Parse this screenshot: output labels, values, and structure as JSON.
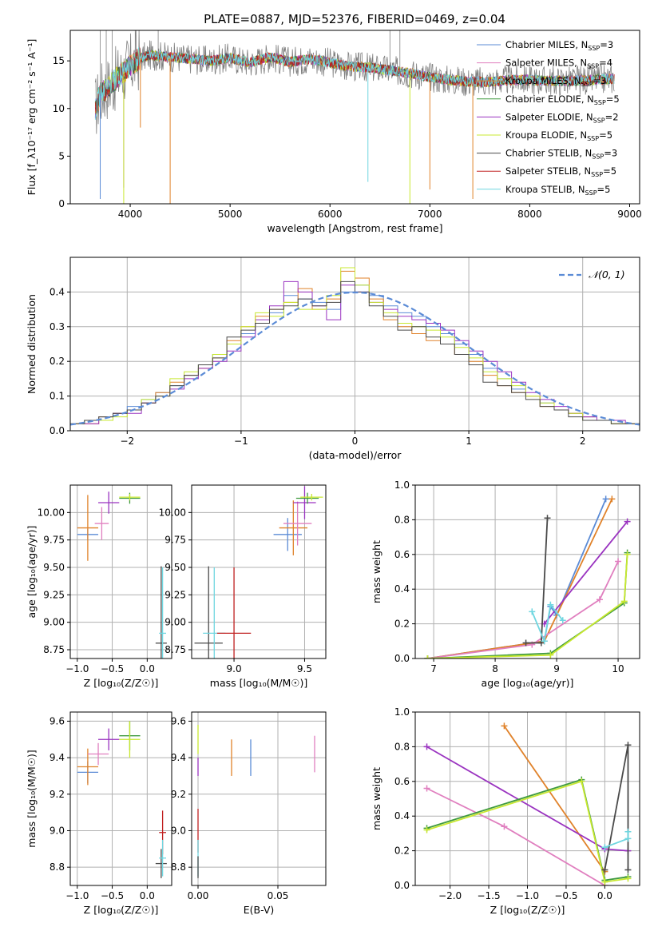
{
  "title": "PLATE=0887, MJD=52376, FIBERID=0469, z=0.04",
  "colors": {
    "chabrier_miles": "#5b8bd6",
    "salpeter_miles": "#e07fbf",
    "kroupa_miles": "#e0822a",
    "chabrier_elodie": "#3f9a3f",
    "salpeter_elodie": "#9a33c0",
    "kroupa_elodie": "#c8e830",
    "chabrier_stelib": "#4a4a4a",
    "salpeter_stelib": "#c02020",
    "kroupa_stelib": "#6fd6e0",
    "gaussian": "#5b8bd6",
    "grid": "#b0b0b0"
  },
  "legend_spectrum": [
    {
      "label": "Chabrier MILES, N",
      "sub": "SSP",
      "tail": "=3",
      "color": "#5b8bd6"
    },
    {
      "label": "Salpeter MILES, N",
      "sub": "SSP",
      "tail": "=4",
      "color": "#e07fbf"
    },
    {
      "label": "Kroupa MILES, N",
      "sub": "SSP",
      "tail": "=3",
      "color": "#e0822a"
    },
    {
      "label": "Chabrier ELODIE, N",
      "sub": "SSP",
      "tail": "=5",
      "color": "#3f9a3f"
    },
    {
      "label": "Salpeter ELODIE, N",
      "sub": "SSP",
      "tail": "=2",
      "color": "#9a33c0"
    },
    {
      "label": "Kroupa ELODIE, N",
      "sub": "SSP",
      "tail": "=5",
      "color": "#c8e830"
    },
    {
      "label": "Chabrier STELIB, N",
      "sub": "SSP",
      "tail": "=3",
      "color": "#4a4a4a"
    },
    {
      "label": "Salpeter STELIB, N",
      "sub": "SSP",
      "tail": "=5",
      "color": "#c02020"
    },
    {
      "label": "Kroupa STELIB, N",
      "sub": "SSP",
      "tail": "=5",
      "color": "#6fd6e0"
    }
  ],
  "legend_gauss": "𝒩(0, 1)",
  "chart_data": [
    {
      "id": "spectrum",
      "type": "line",
      "xlabel": "wavelength [Angstrom, rest frame]",
      "ylabel": "Flux [f_λ10⁻¹⁷ erg cm⁻² s⁻¹ A⁻¹]",
      "xlim": [
        3400,
        9100
      ],
      "ylim": [
        0,
        18.2
      ],
      "xticks": [
        4000,
        5000,
        6000,
        7000,
        8000,
        9000
      ],
      "yticks": [
        0,
        5,
        10,
        15
      ],
      "x": [
        3650,
        3700,
        3800,
        3900,
        4000,
        4100,
        4200,
        4400,
        4600,
        4800,
        5000,
        5200,
        5400,
        5600,
        5800,
        6000,
        6200,
        6400,
        6600,
        6800,
        7000,
        7200,
        7400,
        7600,
        7800,
        8000,
        8200,
        8400,
        8600,
        8800
      ],
      "y": [
        10.0,
        11.5,
        12.5,
        13.5,
        14.5,
        15.3,
        15.6,
        15.4,
        15.2,
        15.0,
        15.3,
        14.8,
        15.4,
        14.9,
        15.2,
        14.8,
        14.4,
        14.3,
        14.0,
        13.7,
        13.3,
        13.0,
        12.8,
        12.8,
        13.0,
        13.0,
        12.9,
        12.9,
        13.0,
        13.1
      ],
      "dips": [
        {
          "x": 3700,
          "y": 0.5,
          "color": "#5b8bd6"
        },
        {
          "x": 3935,
          "y": 1.7,
          "color": "#9a33c0"
        },
        {
          "x": 3935,
          "y": 0.0,
          "color": "#c8e830"
        },
        {
          "x": 4102,
          "y": 8.0,
          "color": "#e0822a"
        },
        {
          "x": 4400,
          "y": 0.0,
          "color": "#e0822a"
        },
        {
          "x": 6380,
          "y": 2.3,
          "color": "#6fd6e0"
        },
        {
          "x": 6800,
          "y": 0.0,
          "color": "#c8e830"
        },
        {
          "x": 7000,
          "y": 1.5,
          "color": "#e0822a"
        },
        {
          "x": 7430,
          "y": 0.5,
          "color": "#e0822a"
        }
      ]
    },
    {
      "id": "residuals",
      "type": "line",
      "xlabel": "(data-model)/error",
      "ylabel": "Normed distribution",
      "xlim": [
        -2.5,
        2.5
      ],
      "ylim": [
        0,
        0.5
      ],
      "xticks": [
        -2,
        -1,
        0,
        1,
        2
      ],
      "yticks": [
        0.0,
        0.1,
        0.2,
        0.3,
        0.4
      ],
      "gaussian": {
        "mu": 0,
        "sigma": 1,
        "name": "𝒩(0, 1)"
      },
      "series": [
        {
          "color": "#5b8bd6",
          "values": [
            0.02,
            0.03,
            0.04,
            0.05,
            0.07,
            0.09,
            0.11,
            0.13,
            0.16,
            0.19,
            0.22,
            0.25,
            0.28,
            0.31,
            0.34,
            0.39,
            0.38,
            0.37,
            0.35,
            0.4,
            0.42,
            0.39,
            0.36,
            0.34,
            0.33,
            0.3,
            0.28,
            0.25,
            0.22,
            0.18,
            0.15,
            0.12,
            0.1,
            0.08,
            0.06,
            0.05,
            0.04,
            0.03,
            0.02,
            0.02
          ]
        },
        {
          "color": "#e0822a",
          "values": [
            0.02,
            0.02,
            0.04,
            0.05,
            0.06,
            0.08,
            0.11,
            0.14,
            0.16,
            0.18,
            0.21,
            0.26,
            0.3,
            0.33,
            0.35,
            0.37,
            0.41,
            0.35,
            0.38,
            0.46,
            0.44,
            0.38,
            0.32,
            0.3,
            0.28,
            0.26,
            0.25,
            0.22,
            0.2,
            0.16,
            0.13,
            0.11,
            0.1,
            0.07,
            0.06,
            0.05,
            0.04,
            0.03,
            0.02,
            0.02
          ]
        },
        {
          "color": "#9a33c0",
          "values": [
            0.02,
            0.02,
            0.03,
            0.05,
            0.05,
            0.08,
            0.1,
            0.12,
            0.15,
            0.18,
            0.2,
            0.23,
            0.27,
            0.32,
            0.36,
            0.43,
            0.4,
            0.36,
            0.32,
            0.42,
            0.4,
            0.37,
            0.35,
            0.33,
            0.32,
            0.31,
            0.29,
            0.26,
            0.23,
            0.2,
            0.17,
            0.14,
            0.11,
            0.09,
            0.07,
            0.05,
            0.04,
            0.03,
            0.03,
            0.02
          ]
        },
        {
          "color": "#c8e830",
          "values": [
            0.02,
            0.03,
            0.03,
            0.04,
            0.06,
            0.09,
            0.1,
            0.15,
            0.17,
            0.19,
            0.22,
            0.25,
            0.3,
            0.34,
            0.33,
            0.37,
            0.35,
            0.35,
            0.39,
            0.47,
            0.42,
            0.37,
            0.34,
            0.31,
            0.3,
            0.29,
            0.27,
            0.24,
            0.21,
            0.17,
            0.15,
            0.13,
            0.1,
            0.08,
            0.06,
            0.05,
            0.03,
            0.03,
            0.02,
            0.02
          ]
        },
        {
          "color": "#4a4a4a",
          "values": [
            0.02,
            0.03,
            0.04,
            0.05,
            0.06,
            0.08,
            0.1,
            0.13,
            0.16,
            0.19,
            0.21,
            0.27,
            0.29,
            0.31,
            0.35,
            0.36,
            0.38,
            0.36,
            0.37,
            0.43,
            0.4,
            0.36,
            0.33,
            0.29,
            0.3,
            0.27,
            0.25,
            0.22,
            0.19,
            0.14,
            0.13,
            0.11,
            0.09,
            0.07,
            0.06,
            0.04,
            0.03,
            0.03,
            0.02,
            0.02
          ]
        }
      ]
    },
    {
      "id": "age-vs-Z",
      "type": "scatter",
      "xlabel": "Z [log₁₀(Z/Z☉)]",
      "ylabel": "age  [log₁₀(age/yr)]",
      "xlim": [
        -1.1,
        0.35
      ],
      "ylim": [
        8.67,
        10.25
      ],
      "xticks": [
        -1.0,
        -0.5,
        0.0
      ],
      "yticks": [
        8.75,
        9.0,
        9.25,
        9.5,
        9.75,
        10.0
      ],
      "points": [
        {
          "x": -0.85,
          "y": 9.8,
          "xerr": 0.15,
          "yerr": 0.05,
          "color": "#5b8bd6"
        },
        {
          "x": -0.85,
          "y": 9.86,
          "xerr": 0.15,
          "yerr": 0.3,
          "color": "#e0822a"
        },
        {
          "x": -0.65,
          "y": 9.9,
          "xerr": 0.1,
          "yerr": 0.15,
          "color": "#e07fbf"
        },
        {
          "x": -0.55,
          "y": 10.09,
          "xerr": 0.15,
          "yerr": 0.1,
          "color": "#9a33c0"
        },
        {
          "x": -0.25,
          "y": 10.13,
          "xerr": 0.15,
          "yerr": 0.05,
          "color": "#3f9a3f"
        },
        {
          "x": -0.25,
          "y": 10.14,
          "xerr": 0.15,
          "yerr": 0.03,
          "color": "#c8e830"
        },
        {
          "x": 0.2,
          "y": 8.81,
          "xerr": 0.08,
          "yerr": 0.7,
          "color": "#4a4a4a"
        },
        {
          "x": 0.22,
          "y": 8.9,
          "xerr": 0.05,
          "yerr": 0.6,
          "color": "#6fd6e0"
        }
      ]
    },
    {
      "id": "age-vs-mass",
      "type": "scatter",
      "xlabel": "mass [log₁₀(M/M☉)]",
      "ylabel": "",
      "xlim": [
        8.7,
        9.65
      ],
      "ylim": [
        8.67,
        10.25
      ],
      "xticks": [
        9.0,
        9.5
      ],
      "yticks": [
        8.75,
        9.0,
        9.25,
        9.5,
        9.75,
        10.0
      ],
      "points": [
        {
          "x": 8.82,
          "y": 8.81,
          "xerr": 0.1,
          "yerr": 0.7,
          "color": "#4a4a4a"
        },
        {
          "x": 8.86,
          "y": 8.9,
          "xerr": 0.08,
          "yerr": 0.6,
          "color": "#6fd6e0"
        },
        {
          "x": 9.0,
          "y": 8.9,
          "xerr": 0.12,
          "yerr": 0.6,
          "color": "#c02020"
        },
        {
          "x": 9.38,
          "y": 9.8,
          "xerr": 0.1,
          "yerr": 0.15,
          "color": "#5b8bd6"
        },
        {
          "x": 9.42,
          "y": 9.86,
          "xerr": 0.1,
          "yerr": 0.25,
          "color": "#e0822a"
        },
        {
          "x": 9.45,
          "y": 9.9,
          "xerr": 0.1,
          "yerr": 0.2,
          "color": "#e07fbf"
        },
        {
          "x": 9.5,
          "y": 10.09,
          "xerr": 0.08,
          "yerr": 0.15,
          "color": "#9a33c0"
        },
        {
          "x": 9.52,
          "y": 10.13,
          "xerr": 0.08,
          "yerr": 0.05,
          "color": "#3f9a3f"
        },
        {
          "x": 9.55,
          "y": 10.14,
          "xerr": 0.08,
          "yerr": 0.03,
          "color": "#c8e830"
        }
      ]
    },
    {
      "id": "weight-vs-age",
      "type": "line",
      "xlabel": "age  [log₁₀(age/yr)]",
      "ylabel": "mass weight",
      "xlim": [
        6.7,
        10.35
      ],
      "ylim": [
        0,
        1.0
      ],
      "xticks": [
        7,
        8,
        9,
        10
      ],
      "yticks": [
        0.0,
        0.2,
        0.4,
        0.6,
        0.8,
        1.0
      ],
      "series": [
        {
          "color": "#5b8bd6",
          "x": [
            6.9,
            8.8,
            8.9,
            9.0,
            9.8
          ],
          "y": [
            0.0,
            0.1,
            0.3,
            0.25,
            0.92
          ]
        },
        {
          "color": "#e0822a",
          "x": [
            6.9,
            8.8,
            9.9
          ],
          "y": [
            0.0,
            0.1,
            0.92
          ]
        },
        {
          "color": "#e07fbf",
          "x": [
            6.9,
            8.6,
            9.7,
            10.0
          ],
          "y": [
            0.0,
            0.08,
            0.34,
            0.56
          ]
        },
        {
          "color": "#9a33c0",
          "x": [
            8.8,
            10.15
          ],
          "y": [
            0.2,
            0.79
          ]
        },
        {
          "color": "#3f9a3f",
          "x": [
            6.9,
            8.9,
            10.1,
            10.15
          ],
          "y": [
            0.0,
            0.03,
            0.32,
            0.61
          ]
        },
        {
          "color": "#c8e830",
          "x": [
            6.9,
            8.9,
            10.1,
            10.15
          ],
          "y": [
            0.0,
            0.02,
            0.33,
            0.6
          ]
        },
        {
          "color": "#4a4a4a",
          "x": [
            8.5,
            8.75,
            8.85
          ],
          "y": [
            0.09,
            0.09,
            0.81
          ]
        },
        {
          "color": "#6fd6e0",
          "x": [
            8.6,
            8.8,
            8.9,
            9.1
          ],
          "y": [
            0.27,
            0.1,
            0.31,
            0.22
          ]
        }
      ]
    },
    {
      "id": "mass-vs-Z",
      "type": "scatter",
      "xlabel": "Z [log₁₀(Z/Z☉)]",
      "ylabel": "mass [log₁₀(M/M☉)]",
      "xlim": [
        -1.1,
        0.35
      ],
      "ylim": [
        8.7,
        9.65
      ],
      "xticks": [
        -1.0,
        -0.5,
        0.0
      ],
      "yticks": [
        8.8,
        9.0,
        9.2,
        9.4,
        9.6
      ],
      "points": [
        {
          "x": -0.85,
          "y": 9.32,
          "xerr": 0.15,
          "yerr": 0.06,
          "color": "#5b8bd6"
        },
        {
          "x": -0.85,
          "y": 9.35,
          "xerr": 0.15,
          "yerr": 0.1,
          "color": "#e0822a"
        },
        {
          "x": -0.7,
          "y": 9.42,
          "xerr": 0.15,
          "yerr": 0.06,
          "color": "#e07fbf"
        },
        {
          "x": -0.55,
          "y": 9.5,
          "xerr": 0.15,
          "yerr": 0.06,
          "color": "#9a33c0"
        },
        {
          "x": -0.25,
          "y": 9.52,
          "xerr": 0.15,
          "yerr": 0.08,
          "color": "#3f9a3f"
        },
        {
          "x": -0.25,
          "y": 9.5,
          "xerr": 0.15,
          "yerr": 0.1,
          "color": "#c8e830"
        },
        {
          "x": 0.2,
          "y": 8.82,
          "xerr": 0.08,
          "yerr": 0.08,
          "color": "#4a4a4a"
        },
        {
          "x": 0.22,
          "y": 8.99,
          "xerr": 0.05,
          "yerr": 0.12,
          "color": "#c02020"
        },
        {
          "x": 0.22,
          "y": 8.85,
          "xerr": 0.05,
          "yerr": 0.1,
          "color": "#6fd6e0"
        }
      ]
    },
    {
      "id": "mass-vs-ebv",
      "type": "scatter",
      "xlabel": "E(B-V)",
      "ylabel": "",
      "xlim": [
        -0.004,
        0.08
      ],
      "ylim": [
        8.7,
        9.65
      ],
      "xticks": [
        0.0,
        0.05
      ],
      "yticks": [
        8.8,
        9.0,
        9.2,
        9.4,
        9.6
      ],
      "points": [
        {
          "x": 0.0,
          "y": 9.5,
          "xerr": 0,
          "yerr": 0.08,
          "color": "#c8e830"
        },
        {
          "x": 0.0,
          "y": 9.35,
          "xerr": 0,
          "yerr": 0.05,
          "color": "#9a33c0"
        },
        {
          "x": 0.0,
          "y": 9.0,
          "xerr": 0,
          "yerr": 0.12,
          "color": "#c02020"
        },
        {
          "x": 0.0,
          "y": 8.85,
          "xerr": 0,
          "yerr": 0.1,
          "color": "#6fd6e0"
        },
        {
          "x": 0.0,
          "y": 8.8,
          "xerr": 0,
          "yerr": 0.06,
          "color": "#4a4a4a"
        },
        {
          "x": 0.021,
          "y": 9.4,
          "xerr": 0,
          "yerr": 0.1,
          "color": "#e0822a"
        },
        {
          "x": 0.033,
          "y": 9.4,
          "xerr": 0,
          "yerr": 0.1,
          "color": "#5b8bd6"
        },
        {
          "x": 0.073,
          "y": 9.42,
          "xerr": 0,
          "yerr": 0.1,
          "color": "#e07fbf"
        }
      ]
    },
    {
      "id": "weight-vs-Z",
      "type": "line",
      "xlabel": "Z [log₁₀(Z/Z☉)]",
      "ylabel": "mass weight",
      "xlim": [
        -2.45,
        0.45
      ],
      "ylim": [
        0,
        1.0
      ],
      "xticks": [
        -2.0,
        -1.5,
        -1.0,
        -0.5,
        0.0
      ],
      "yticks": [
        0.0,
        0.2,
        0.4,
        0.6,
        0.8,
        1.0
      ],
      "series": [
        {
          "color": "#e0822a",
          "x": [
            -1.3,
            0.0
          ],
          "y": [
            0.92,
            0.08
          ]
        },
        {
          "color": "#9a33c0",
          "x": [
            -2.3,
            0.0,
            0.3
          ],
          "y": [
            0.8,
            0.21,
            0.2
          ]
        },
        {
          "color": "#e07fbf",
          "x": [
            -2.3,
            -1.3,
            0.0
          ],
          "y": [
            0.56,
            0.34,
            0.0
          ]
        },
        {
          "color": "#3f9a3f",
          "x": [
            -2.3,
            -0.3,
            0.0,
            0.3
          ],
          "y": [
            0.33,
            0.61,
            0.03,
            0.05
          ]
        },
        {
          "color": "#c8e830",
          "x": [
            -2.3,
            -0.3,
            0.0,
            0.3
          ],
          "y": [
            0.32,
            0.6,
            0.02,
            0.04
          ]
        },
        {
          "color": "#4a4a4a",
          "x": [
            0.0,
            0.3,
            0.3
          ],
          "y": [
            0.09,
            0.81,
            0.09
          ]
        },
        {
          "color": "#6fd6e0",
          "x": [
            0.0,
            0.3,
            0.3
          ],
          "y": [
            0.22,
            0.27,
            0.31
          ]
        }
      ]
    }
  ]
}
